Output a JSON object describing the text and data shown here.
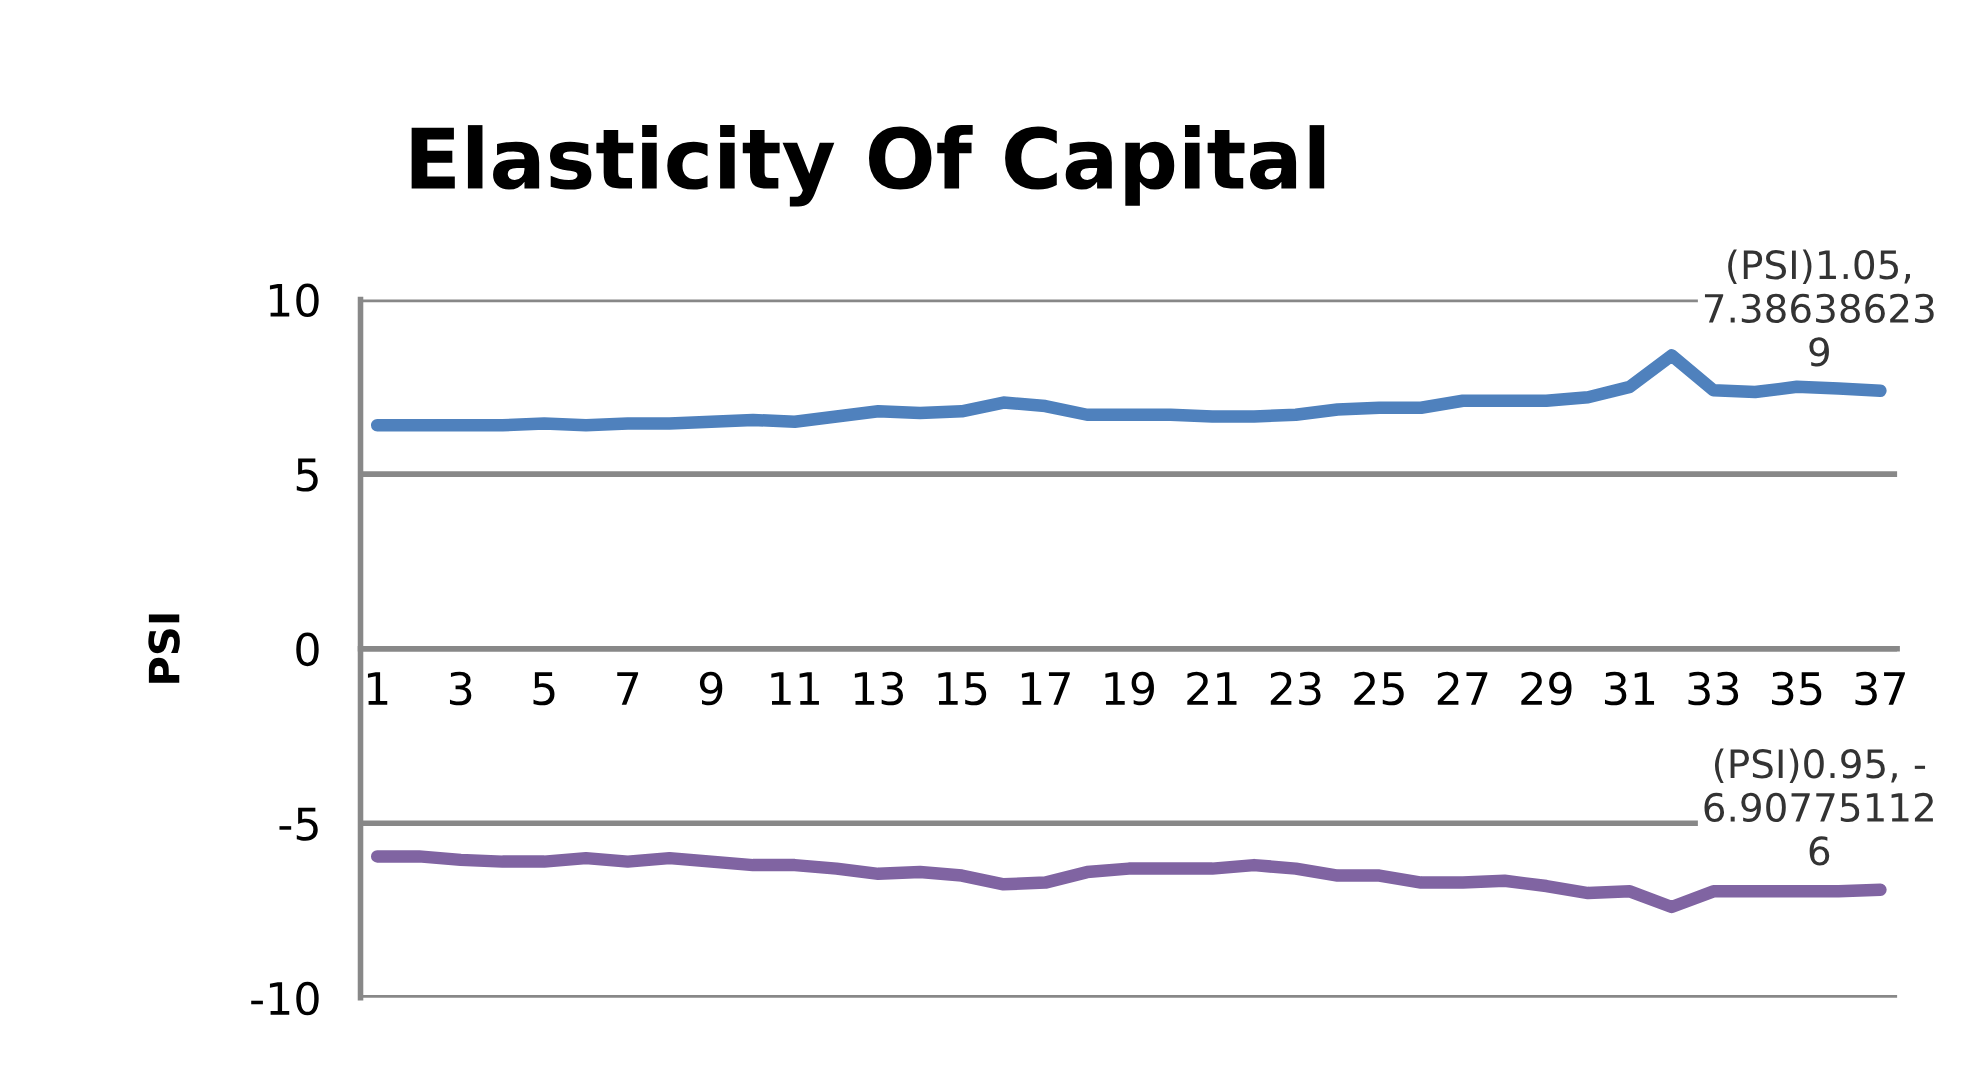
{
  "chart_data": {
    "type": "line",
    "title": "Elasticity Of Capital",
    "ylabel": "PSI",
    "categories": [
      "1",
      null,
      "3",
      null,
      "5",
      null,
      "7",
      null,
      "9",
      null,
      "11",
      null,
      "13",
      null,
      "15",
      null,
      "17",
      null,
      "19",
      null,
      "21",
      null,
      "23",
      null,
      "25",
      null,
      "27",
      null,
      "29",
      null,
      "31",
      null,
      "33",
      null,
      "35",
      null,
      "37"
    ],
    "series": [
      {
        "color": "#4f81bd",
        "values": [
          6.4,
          6.4,
          6.4,
          6.4,
          6.45,
          6.4,
          6.45,
          6.45,
          6.5,
          6.55,
          6.5,
          6.65,
          6.8,
          6.75,
          6.8,
          7.05,
          6.95,
          6.7,
          6.7,
          6.7,
          6.65,
          6.65,
          6.7,
          6.85,
          6.9,
          6.9,
          7.1,
          7.1,
          7.1,
          7.2,
          7.5,
          8.4,
          7.4,
          7.35,
          7.5,
          7.45,
          7.386386239
        ]
      },
      {
        "color": "#8064a2",
        "values": [
          -5.95,
          -5.95,
          -6.05,
          -6.1,
          -6.1,
          -6.0,
          -6.1,
          -6.0,
          -6.1,
          -6.2,
          -6.2,
          -6.3,
          -6.45,
          -6.4,
          -6.5,
          -6.75,
          -6.7,
          -6.4,
          -6.3,
          -6.3,
          -6.3,
          -6.2,
          -6.3,
          -6.5,
          -6.5,
          -6.7,
          -6.7,
          -6.65,
          -6.8,
          -7.0,
          -6.95,
          -7.4,
          -6.95,
          -6.95,
          -6.95,
          -6.95,
          -6.907751126
        ]
      }
    ],
    "annotations": [
      {
        "text": "(PSI)1.05,\n7.38638623\n9",
        "x": "37",
        "y": 7.386386239
      },
      {
        "text": "(PSI)0.95, -\n6.90775112\n6",
        "x": "37",
        "y": -6.907751126
      }
    ],
    "ylim": [
      -10,
      10
    ],
    "yticks": [
      -10,
      -5,
      0,
      5,
      10
    ],
    "grid": "y",
    "marker": "none",
    "line_style": "solid"
  }
}
